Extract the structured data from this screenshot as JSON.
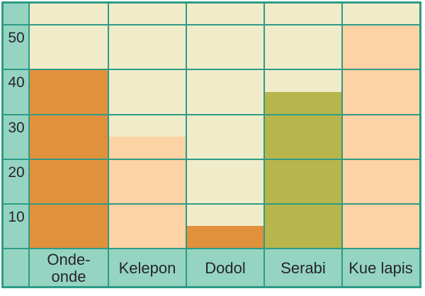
{
  "chart_data": {
    "type": "bar",
    "title": "",
    "xlabel": "",
    "ylabel": "",
    "categories": [
      "Onde-onde",
      "Kelepon",
      "Dodol",
      "Serabi",
      "Kue lapis"
    ],
    "values": [
      40,
      25,
      5,
      35,
      50
    ],
    "yticks": [
      "50",
      "40",
      "30",
      "20",
      "10"
    ],
    "ylim": [
      0,
      55
    ],
    "grid": true,
    "legend": false,
    "bar_colors": [
      "#E1903C",
      "#FDD2A4",
      "#E1903C",
      "#B7B54B",
      "#FDD2A4"
    ],
    "colors": {
      "plot_background": "#F0ECCA",
      "axis_band": "#95D4C1",
      "grid_line": "#2E9B85",
      "text": "#26242E",
      "page_background": "#FFFFFF",
      "orange_bar": "#E1903C",
      "peach_bar": "#FDD2A4",
      "olive_bar": "#B7B54B"
    }
  }
}
